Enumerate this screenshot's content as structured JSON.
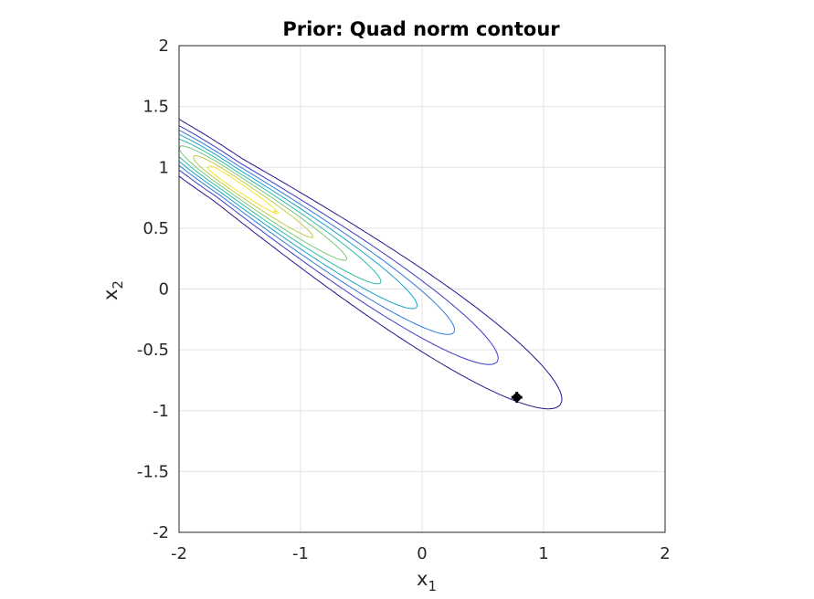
{
  "chart_data": {
    "type": "contour",
    "title": "Prior: Quad norm contour",
    "xlabel": "x",
    "xlabel_sub": "1",
    "ylabel": "x",
    "ylabel_sub": "2",
    "xlim": [
      -2,
      2
    ],
    "ylim": [
      -2,
      2
    ],
    "x_ticks": [
      -2,
      -1,
      0,
      1,
      2
    ],
    "x_tick_labels": [
      "-2",
      "-1",
      "0",
      "1",
      "2"
    ],
    "y_ticks": [
      -2,
      -1.5,
      -1,
      -0.5,
      0,
      0.5,
      1,
      1.5,
      2
    ],
    "y_tick_labels": [
      "-2",
      "-1.5",
      "-1",
      "-0.5",
      "0",
      "0.5",
      "1",
      "1.5",
      "2"
    ],
    "grid": true,
    "levels": [
      0.05,
      0.14,
      0.25,
      0.38,
      0.53,
      0.68,
      0.82,
      0.93
    ],
    "level_colors": [
      "#2c0f87",
      "#3a3ac8",
      "#2f7ad6",
      "#1aa3c9",
      "#2dbba6",
      "#7cc679",
      "#c3c94a",
      "#f2e224"
    ],
    "ridge": {
      "center": [
        -1.6,
        0.9
      ],
      "direction": [
        0.83,
        -0.56
      ]
    },
    "marker": {
      "x": 0.78,
      "y": -0.89,
      "color": "#000000"
    }
  }
}
